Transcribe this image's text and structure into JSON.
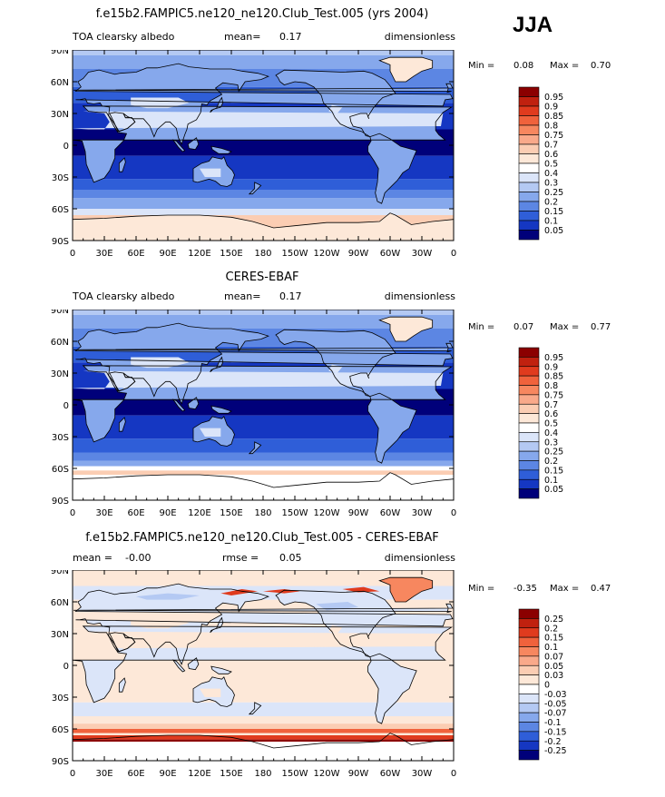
{
  "season": "JJA",
  "chart_data": [
    {
      "type": "heatmap",
      "title": "f.e15b2.FAMPIC5.ne120_ne120.Club_Test.005 (yrs 2004)",
      "left_label": "TOA clearsky albedo",
      "center_label": "mean=",
      "center_value": "0.17",
      "right_label": "dimensionless",
      "min_label": "Min =",
      "min_value": "0.08",
      "max_label": "Max =",
      "max_value": "0.70",
      "colorbar_levels": [
        "0.95",
        "0.9",
        "0.85",
        "0.8",
        "0.75",
        "0.7",
        "0.6",
        "0.5",
        "0.4",
        "0.3",
        "0.25",
        "0.2",
        "0.15",
        "0.1",
        "0.05"
      ],
      "colorbar_colors": [
        "#8b0000",
        "#c0210f",
        "#e03b1e",
        "#f0623c",
        "#f7875f",
        "#f9a98a",
        "#fbcdb3",
        "#fde8d8",
        "#ffffff",
        "#dbe5f9",
        "#b4c9f3",
        "#86a8ec",
        "#5c86e3",
        "#2f5ed8",
        "#1537c2",
        "#00007a"
      ],
      "xticks": [
        "0",
        "30E",
        "60E",
        "90E",
        "120E",
        "150E",
        "180",
        "150W",
        "120W",
        "90W",
        "60W",
        "30W",
        "0"
      ],
      "yticks": [
        "90N",
        "60N",
        "30N",
        "0",
        "30S",
        "60S",
        "90S"
      ]
    },
    {
      "type": "heatmap",
      "title": "CERES-EBAF",
      "left_label": "TOA clearsky albedo",
      "center_label": "mean=",
      "center_value": "0.17",
      "right_label": "dimensionless",
      "min_label": "Min =",
      "min_value": "0.07",
      "max_label": "Max =",
      "max_value": "0.77",
      "colorbar_levels": [
        "0.95",
        "0.9",
        "0.85",
        "0.8",
        "0.75",
        "0.7",
        "0.6",
        "0.5",
        "0.4",
        "0.3",
        "0.25",
        "0.2",
        "0.15",
        "0.1",
        "0.05"
      ],
      "colorbar_colors": [
        "#8b0000",
        "#c0210f",
        "#e03b1e",
        "#f0623c",
        "#f7875f",
        "#f9a98a",
        "#fbcdb3",
        "#fde8d8",
        "#ffffff",
        "#dbe5f9",
        "#b4c9f3",
        "#86a8ec",
        "#5c86e3",
        "#2f5ed8",
        "#1537c2",
        "#00007a"
      ],
      "xticks": [
        "0",
        "30E",
        "60E",
        "90E",
        "120E",
        "150E",
        "180",
        "150W",
        "120W",
        "90W",
        "60W",
        "30W",
        "0"
      ],
      "yticks": [
        "90N",
        "60N",
        "30N",
        "0",
        "30S",
        "60S",
        "90S"
      ]
    },
    {
      "type": "heatmap",
      "title": "f.e15b2.FAMPIC5.ne120_ne120.Club_Test.005 - CERES-EBAF",
      "left_label": "mean =",
      "left_value": "-0.00",
      "center_label": "rmse =",
      "center_value": "0.05",
      "right_label": "dimensionless",
      "min_label": "Min =",
      "min_value": "-0.35",
      "max_label": "Max =",
      "max_value": "0.47",
      "colorbar_levels": [
        "0.25",
        "0.2",
        "0.15",
        "0.1",
        "0.07",
        "0.05",
        "0.03",
        "0",
        "-0.03",
        "-0.05",
        "-0.07",
        "-0.1",
        "-0.15",
        "-0.2",
        "-0.25"
      ],
      "colorbar_colors": [
        "#8b0000",
        "#c0210f",
        "#e03b1e",
        "#f0623c",
        "#f7875f",
        "#f9a98a",
        "#fbcdb3",
        "#fde8d8",
        "#ffffff",
        "#dbe5f9",
        "#b4c9f3",
        "#86a8ec",
        "#5c86e3",
        "#2f5ed8",
        "#1537c2",
        "#00007a"
      ],
      "xticks": [
        "0",
        "30E",
        "60E",
        "90E",
        "120E",
        "150E",
        "180",
        "150W",
        "120W",
        "90W",
        "60W",
        "30W",
        "0"
      ],
      "yticks": [
        "90N",
        "60N",
        "30N",
        "0",
        "30S",
        "60S",
        "90S"
      ]
    }
  ]
}
